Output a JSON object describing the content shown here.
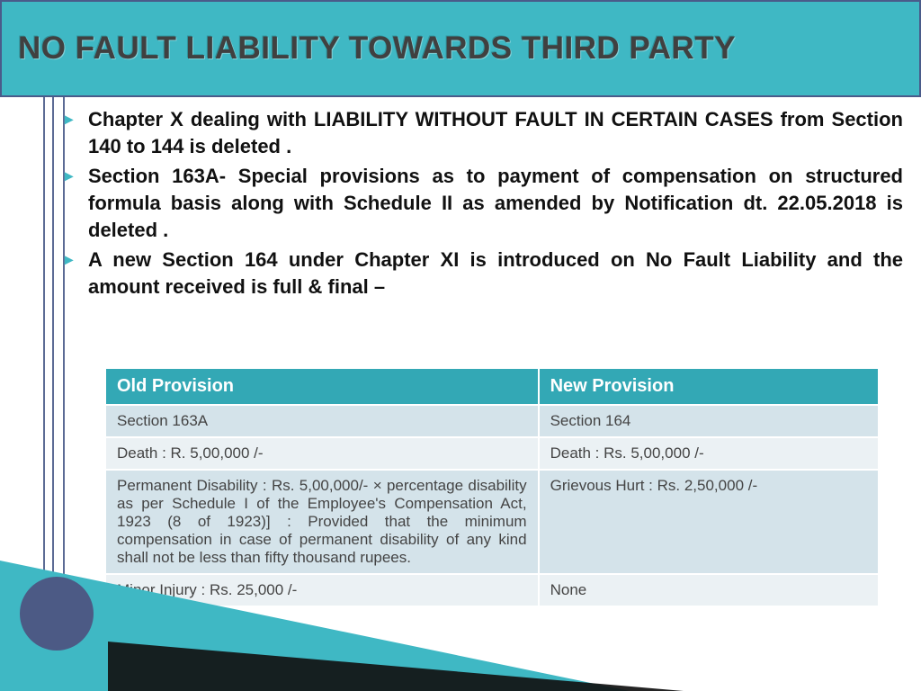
{
  "title": "NO FAULT LIABILITY TOWARDS THIRD PARTY",
  "bullets": [
    "Chapter X dealing with LIABILITY WITHOUT FAULT IN CERTAIN CASES from Section 140 to 144 is deleted .",
    "Section 163A- Special provisions as to payment of compensation on structured formula basis along with Schedule II as amended by Notification dt. 22.05.2018  is deleted .",
    "A new Section 164 under Chapter XI is introduced on No Fault Liability and the amount received is full & final –"
  ],
  "table": {
    "columns": [
      "Old Provision",
      "New Provision"
    ],
    "rows": [
      [
        "Section 163A",
        "Section 164"
      ],
      [
        "Death : R. 5,00,000 /-",
        "Death : Rs. 5,00,000 /-"
      ],
      [
        "Permanent Disability : Rs. 5,00,000/- × percentage disability as per Schedule I of the Employee's Compensation Act, 1923 (8 of 1923)] : Provided that the minimum compensation in case of permanent disability of any kind shall not be less than fifty thousand rupees.",
        "Grievous Hurt : Rs. 2,50,000 /-"
      ],
      [
        "Minor Injury : Rs. 25,000 /-",
        "None"
      ]
    ],
    "header_bg": "#33a8b5",
    "header_fg": "#ffffff",
    "row_alt_a": "#d4e3ea",
    "row_alt_b": "#ebf1f4",
    "col_widths_pct": [
      56,
      44
    ]
  },
  "colors": {
    "accent": "#3fb8c4",
    "banner_border": "#4a5b8a",
    "circle": "#4c5a85",
    "text": "#111111",
    "background": "#ffffff"
  }
}
